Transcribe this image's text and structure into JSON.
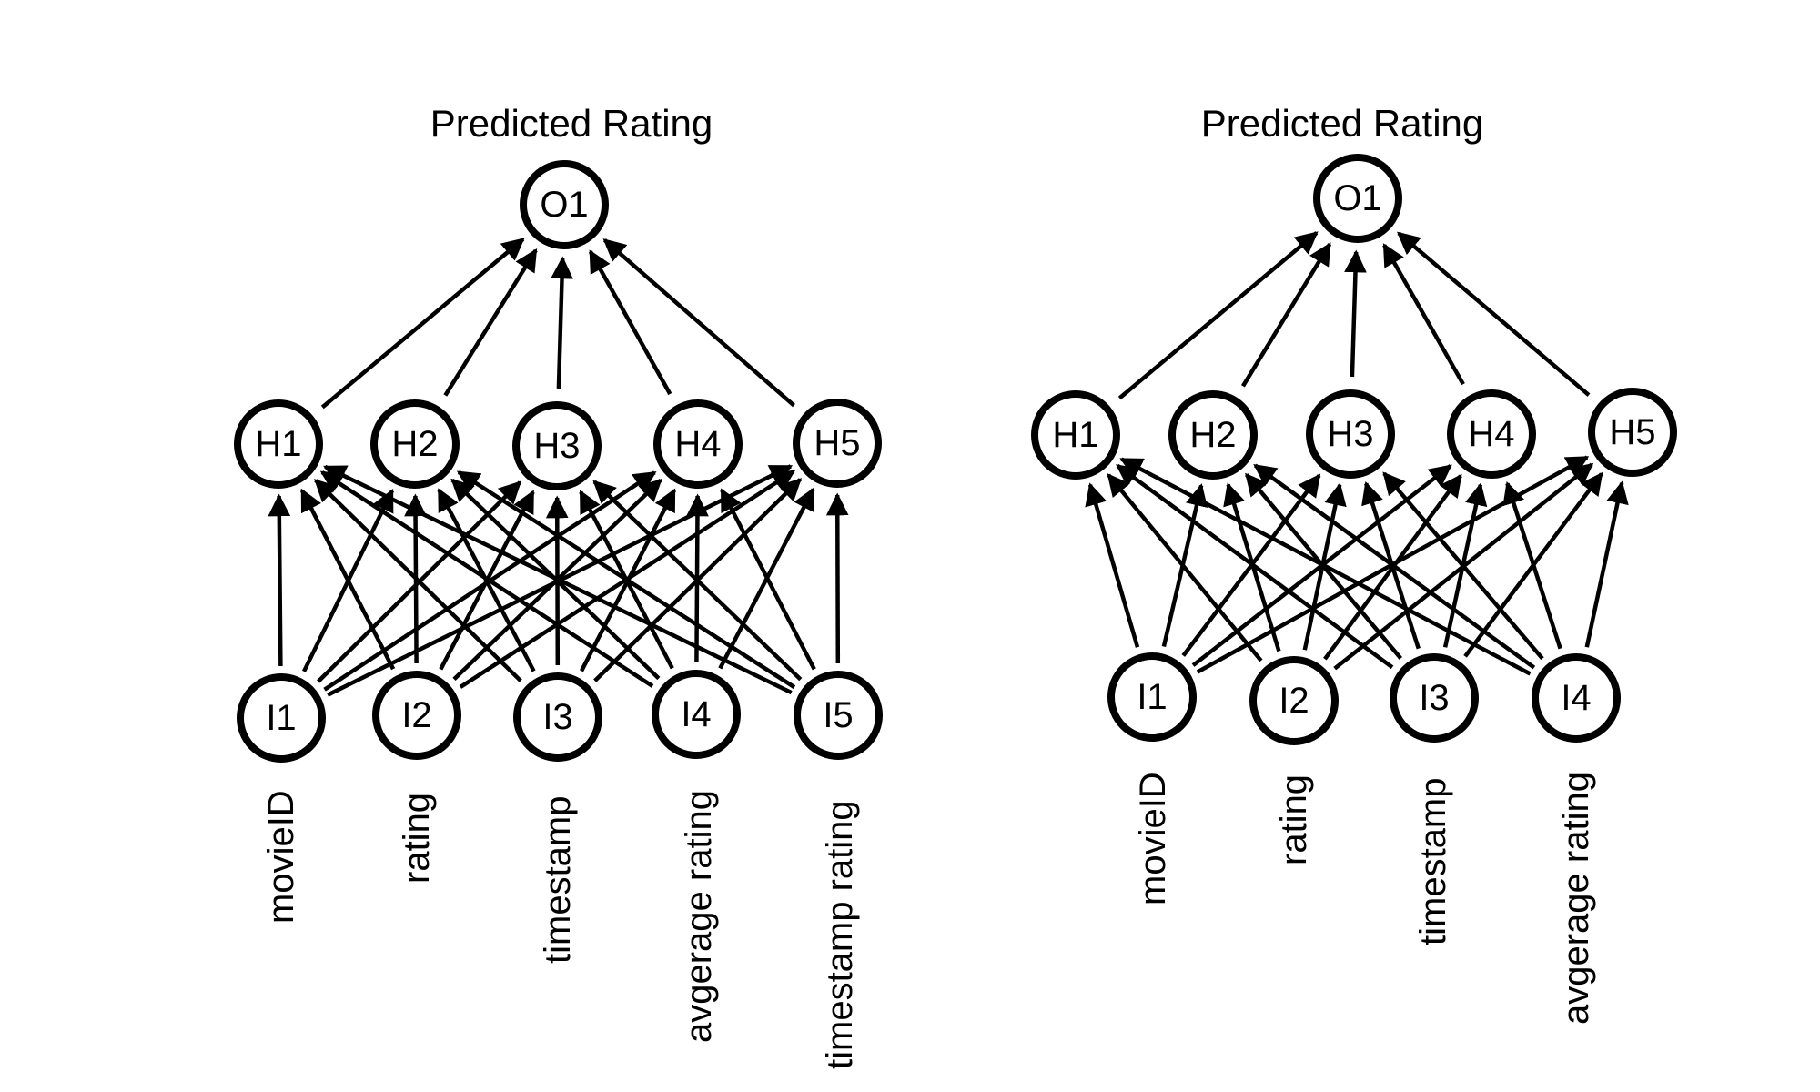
{
  "diagrams": [
    {
      "title": "Predicted Rating",
      "output": [
        "O1"
      ],
      "hidden": [
        "H1",
        "H2",
        "H3",
        "H4",
        "H5"
      ],
      "inputs": [
        "I1",
        "I2",
        "I3",
        "I4",
        "I5"
      ],
      "features": [
        "movieID",
        "rating",
        "timestamp",
        "avgerage rating",
        "timestamp rating"
      ]
    },
    {
      "title": "Predicted Rating",
      "output": [
        "O1"
      ],
      "hidden": [
        "H1",
        "H2",
        "H3",
        "H4",
        "H5"
      ],
      "inputs": [
        "I1",
        "I2",
        "I3",
        "I4"
      ],
      "features": [
        "movieID",
        "rating",
        "timestamp",
        "avgerage rating"
      ]
    }
  ],
  "colors": {
    "stroke": "#000000",
    "background": "#ffffff"
  }
}
